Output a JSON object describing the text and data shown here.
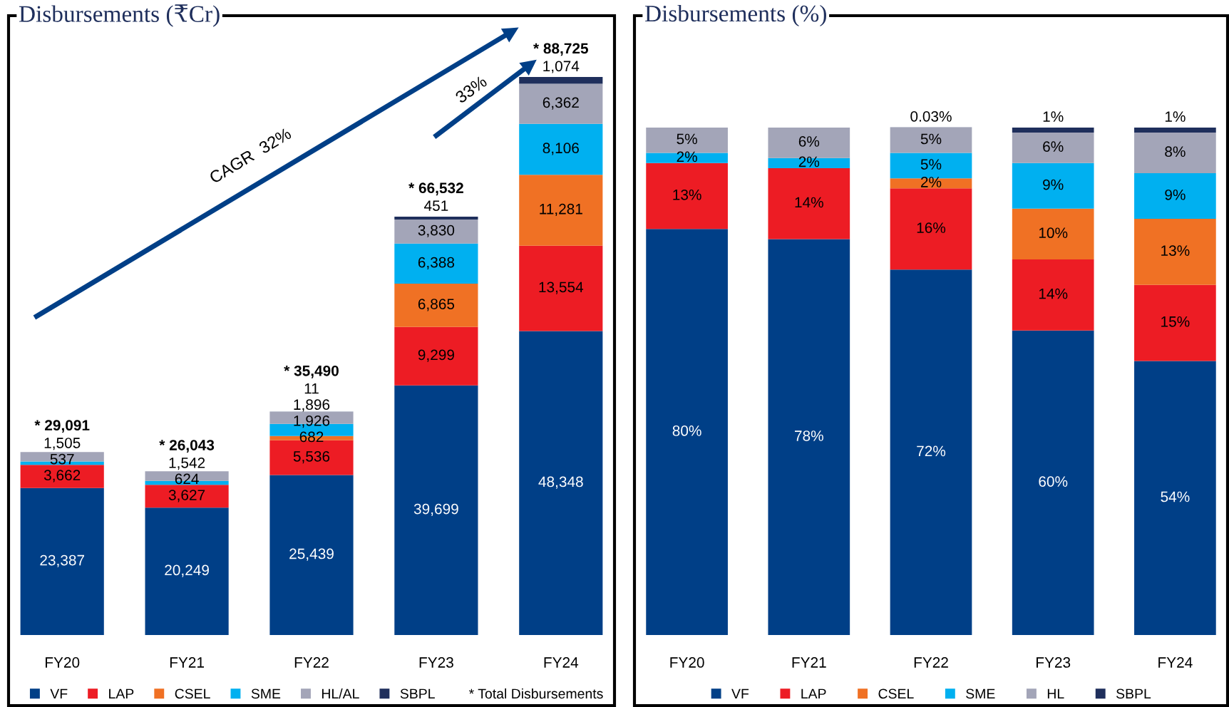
{
  "chart_data": [
    {
      "type": "bar",
      "title": "Disbursements (₹Cr)",
      "stacked": true,
      "legend": "bottom",
      "grid": false,
      "categories": [
        "FY20",
        "FY21",
        "FY22",
        "FY23",
        "FY24"
      ],
      "series": [
        {
          "name": "VF",
          "color": "#003f87",
          "values": [
            23387,
            20249,
            25439,
            39699,
            48348
          ],
          "value_labels": [
            "23,387",
            "20,249",
            "25,439",
            "39,699",
            "48,348"
          ]
        },
        {
          "name": "LAP",
          "color": "#ed1c24",
          "values": [
            3662,
            3627,
            5536,
            9299,
            13554
          ],
          "value_labels": [
            "3,662",
            "3,627",
            "5,536",
            "9,299",
            "13,554"
          ]
        },
        {
          "name": "CSEL",
          "color": "#f07124",
          "values": [
            null,
            null,
            682,
            6865,
            11281
          ],
          "value_labels": [
            null,
            null,
            "682",
            "6,865",
            "11,281"
          ]
        },
        {
          "name": "SME",
          "color": "#00b0f0",
          "values": [
            537,
            624,
            1926,
            6388,
            8106
          ],
          "value_labels": [
            "537",
            "624",
            "1,926",
            "6,388",
            "8,106"
          ]
        },
        {
          "name": "HL/AL",
          "color": "#a3a5b8",
          "values": [
            1505,
            1542,
            1896,
            3830,
            6362
          ],
          "value_labels": [
            "1,505",
            "1,542",
            "1,896",
            "3,830",
            "6,362"
          ]
        },
        {
          "name": "SBPL",
          "color": "#1f2f5c",
          "values": [
            null,
            null,
            11,
            451,
            1074
          ],
          "value_labels": [
            null,
            null,
            "11",
            "451",
            "1,074"
          ]
        }
      ],
      "totals": [
        "* 29,091",
        "* 26,043",
        "* 35,490",
        "* 66,532",
        "* 88,725"
      ],
      "annotations": [
        "CAGR  32%",
        "33%",
        "* Total Disbursements"
      ]
    },
    {
      "type": "bar",
      "title": "Disbursements (%)",
      "stacked": true,
      "legend": "bottom",
      "grid": false,
      "categories": [
        "FY20",
        "FY21",
        "FY22",
        "FY23",
        "FY24"
      ],
      "series": [
        {
          "name": "VF",
          "color": "#003f87",
          "values": [
            80,
            78,
            72,
            60,
            54
          ],
          "value_labels": [
            "80%",
            "78%",
            "72%",
            "60%",
            "54%"
          ]
        },
        {
          "name": "LAP",
          "color": "#ed1c24",
          "values": [
            13,
            14,
            16,
            14,
            15
          ],
          "value_labels": [
            "13%",
            "14%",
            "16%",
            "14%",
            "15%"
          ]
        },
        {
          "name": "CSEL",
          "color": "#f07124",
          "values": [
            null,
            null,
            2,
            10,
            13
          ],
          "value_labels": [
            null,
            null,
            "2%",
            "10%",
            "13%"
          ]
        },
        {
          "name": "SME",
          "color": "#00b0f0",
          "values": [
            2,
            2,
            5,
            9,
            9
          ],
          "value_labels": [
            "2%",
            "2%",
            "5%",
            "9%",
            "9%"
          ]
        },
        {
          "name": "HL",
          "color": "#a3a5b8",
          "values": [
            5,
            6,
            5,
            6,
            8
          ],
          "value_labels": [
            "5%",
            "6%",
            "5%",
            "6%",
            "8%"
          ]
        },
        {
          "name": "SBPL",
          "color": "#1f2f5c",
          "values": [
            null,
            null,
            0.03,
            1,
            1
          ],
          "value_labels": [
            null,
            null,
            "0.03%",
            "1%",
            "1%"
          ]
        }
      ]
    }
  ]
}
